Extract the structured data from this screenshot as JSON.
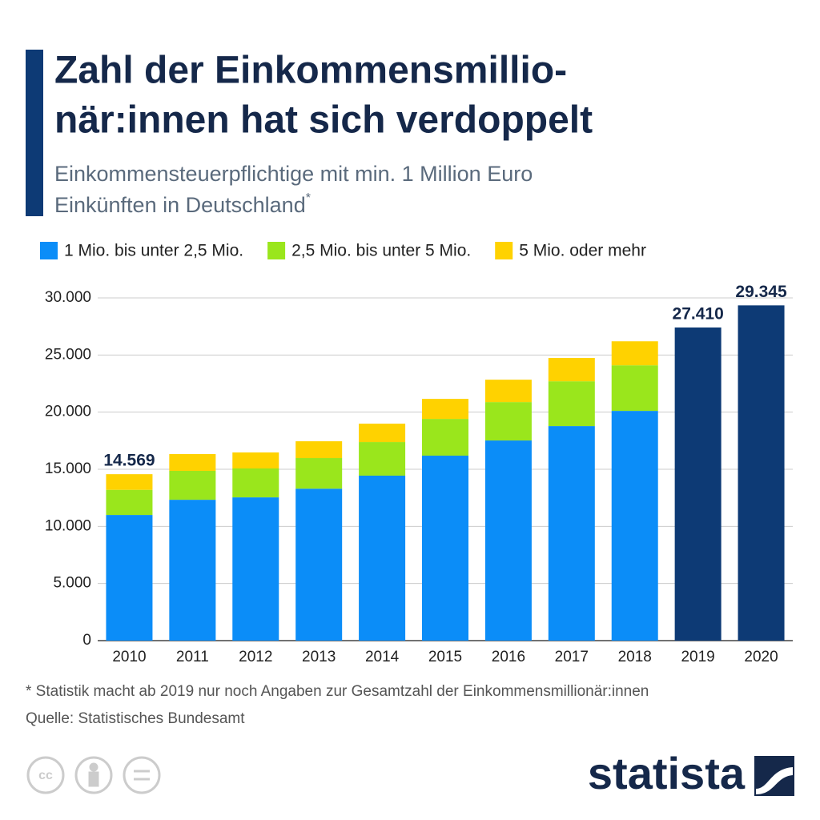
{
  "chart_data": {
    "type": "stacked-bar",
    "title": [
      "Zahl der Einkommensmillio-",
      "när:innen hat sich verdoppelt"
    ],
    "subtitle": [
      "Einkommensteuerpflichtige mit min. 1 Million Euro",
      "Einkünften in Deutschland"
    ],
    "subtitle_mark": "*",
    "categories": [
      "2010",
      "2011",
      "2012",
      "2013",
      "2014",
      "2015",
      "2016",
      "2017",
      "2018",
      "2019",
      "2020"
    ],
    "series": [
      {
        "name": "1 Mio. bis unter 2,5 Mio.",
        "color": "#0b8df8",
        "values": [
          11000,
          12330,
          12540,
          13300,
          14440,
          16190,
          17520,
          18780,
          20110,
          null,
          null
        ]
      },
      {
        "name": "2,5 Mio. bis unter 5 Mio.",
        "color": "#9ae61c",
        "values": [
          2200,
          2530,
          2530,
          2680,
          2940,
          3220,
          3360,
          3920,
          3990,
          null,
          null
        ]
      },
      {
        "name": "5 Mio. oder mehr",
        "color": "#ffd200",
        "values": [
          1369,
          1470,
          1400,
          1470,
          1610,
          1750,
          1960,
          2040,
          2100,
          null,
          null
        ]
      }
    ],
    "totals": {
      "color": "#0d3a75",
      "values": [
        14569,
        null,
        null,
        null,
        null,
        null,
        null,
        null,
        null,
        27410,
        29345
      ],
      "value_labels": [
        "14.569",
        null,
        null,
        null,
        null,
        null,
        null,
        null,
        null,
        "27.410",
        "29.345"
      ]
    },
    "ylim": [
      0,
      30000
    ],
    "yticks": [
      0,
      {
        "value": 5000,
        "label": "5.000"
      },
      {
        "value": 10000,
        "label": "10.000"
      },
      {
        "value": 15000,
        "label": "15.000"
      },
      {
        "value": 20000,
        "label": "20.000"
      },
      {
        "value": 25000,
        "label": "25.000"
      },
      {
        "value": 30000,
        "label": "30.000"
      }
    ],
    "grid": true,
    "footnote": "* Statistik macht ab 2019 nur noch Angaben zur Gesamtzahl der Einkommensmillionär:innen",
    "source": "Quelle: Statistisches Bundesamt",
    "logo": "statista"
  }
}
